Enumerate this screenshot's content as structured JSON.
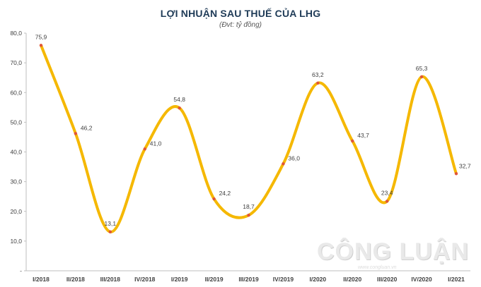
{
  "chart_data": {
    "type": "line",
    "title": "LỢI NHUẬN SAU THUẾ CỦA LHG",
    "subtitle": "(Đvt: tỷ đồng)",
    "categories": [
      "I/2018",
      "II/2018",
      "III/2018",
      "IV/2018",
      "I/2019",
      "II/2019",
      "III/2019",
      "IV/2019",
      "I/2020",
      "II/2020",
      "III/2020",
      "IV/2020",
      "I/2021"
    ],
    "series": [
      {
        "values": [
          75.9,
          46.2,
          13.1,
          41.0,
          54.8,
          24.2,
          18.7,
          36.0,
          63.2,
          43.7,
          23.4,
          65.3,
          32.7
        ]
      }
    ],
    "data_labels": [
      "75,9",
      "46,2",
      "13,1",
      "41,0",
      "54,8",
      "24,2",
      "18,7",
      "36,0",
      "63,2",
      "43,7",
      "23,4",
      "65,3",
      "32,7"
    ],
    "y_tick_labels": [
      "-",
      "10,0",
      "20,0",
      "30,0",
      "40,0",
      "50,0",
      "60,0",
      "70,0",
      "80,0"
    ],
    "y_ticks": [
      0,
      10,
      20,
      30,
      40,
      50,
      60,
      70,
      80
    ],
    "ylim": [
      0,
      80
    ],
    "grid": false,
    "line_color": "#f5b800",
    "marker_color": "#e0553a"
  },
  "watermark": {
    "text": "CÔNG LUẬN",
    "subtext": "www.congluan.vn"
  }
}
